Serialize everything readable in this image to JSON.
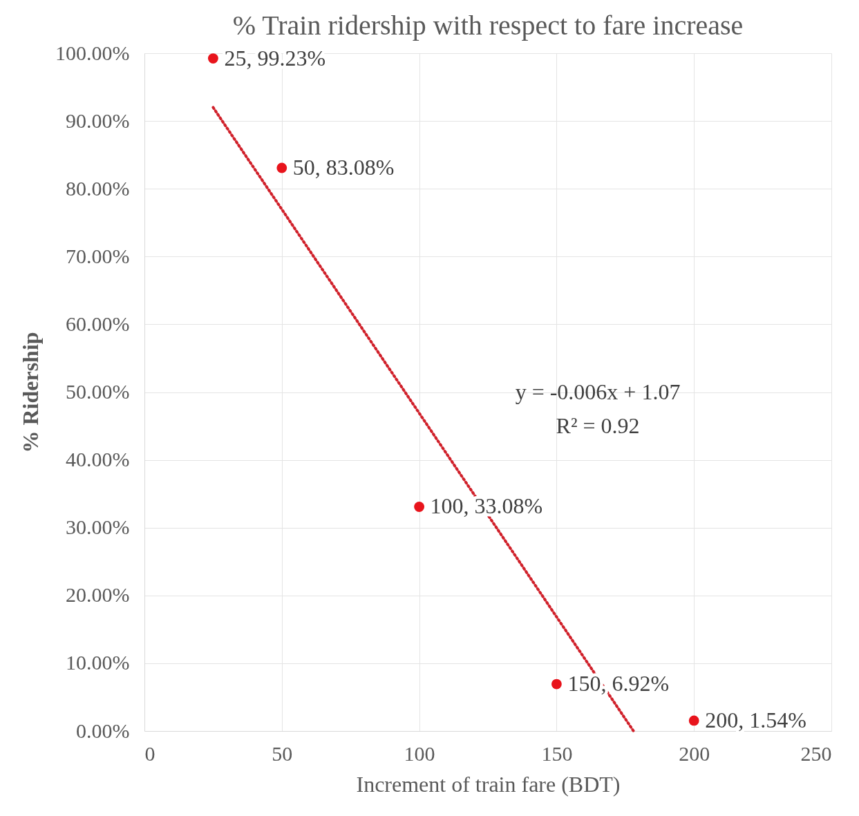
{
  "chart_data": {
    "type": "scatter",
    "title": "% Train ridership with respect to fare increase",
    "xlabel": "Increment of train fare (BDT)",
    "ylabel": "% Ridership",
    "x": [
      25,
      50,
      100,
      150,
      200
    ],
    "series": [
      {
        "marker": "circle",
        "color": "#e8141c",
        "values": [
          99.23,
          83.08,
          33.08,
          6.92,
          1.54
        ],
        "value_labels": [
          "25, 99.23%",
          "50, 83.08%",
          "100, 33.08%",
          "150, 6.92%",
          "200, 1.54%"
        ]
      },
      {
        "type": "line",
        "color": "#d0202a",
        "line_style": "dotted",
        "x": [
          25,
          178
        ],
        "values": [
          92,
          0
        ]
      }
    ],
    "annotations": [
      "y = -0.006x + 1.07",
      "R² = 0.92"
    ],
    "xlim": [
      0,
      250
    ],
    "xticks": [
      0,
      50,
      100,
      150,
      200,
      250
    ],
    "ylim": [
      0,
      100
    ],
    "yticks": [
      {
        "value": 0,
        "label": "0.00%"
      },
      {
        "value": 10,
        "label": "10.00%"
      },
      {
        "value": 20,
        "label": "20.00%"
      },
      {
        "value": 30,
        "label": "30.00%"
      },
      {
        "value": 40,
        "label": "40.00%"
      },
      {
        "value": 50,
        "label": "50.00%"
      },
      {
        "value": 60,
        "label": "60.00%"
      },
      {
        "value": 70,
        "label": "70.00%"
      },
      {
        "value": 80,
        "label": "80.00%"
      },
      {
        "value": 90,
        "label": "90.00%"
      },
      {
        "value": 100,
        "label": "100.00%"
      }
    ],
    "grid": true
  }
}
